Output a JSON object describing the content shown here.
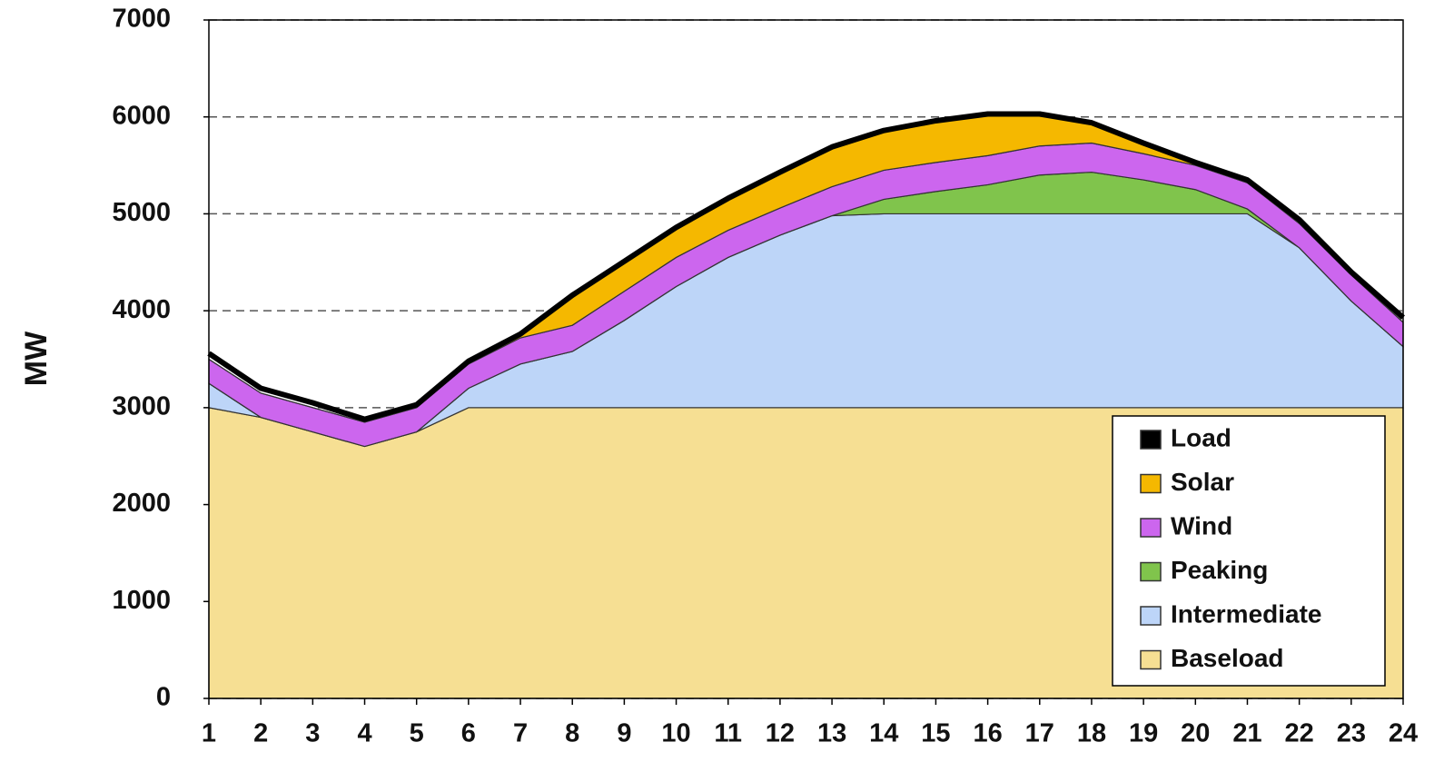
{
  "chart_data": {
    "type": "area",
    "stacked": true,
    "y_label": "MW",
    "x": [
      1,
      2,
      3,
      4,
      5,
      6,
      7,
      8,
      9,
      10,
      11,
      12,
      13,
      14,
      15,
      16,
      17,
      18,
      19,
      20,
      21,
      22,
      23,
      24
    ],
    "xlim": [
      1,
      24
    ],
    "xticks": [
      1,
      2,
      3,
      4,
      5,
      6,
      7,
      8,
      9,
      10,
      11,
      12,
      13,
      14,
      15,
      16,
      17,
      18,
      19,
      20,
      21,
      22,
      23,
      24
    ],
    "ylim": [
      0,
      7000
    ],
    "yticks": [
      0,
      1000,
      2000,
      3000,
      4000,
      5000,
      6000,
      7000
    ],
    "grid": true,
    "legend": "lower right",
    "series": [
      {
        "name": "Baseload",
        "color": "#f6df93",
        "values": [
          3000,
          2900,
          2750,
          2600,
          2750,
          3000,
          3000,
          3000,
          3000,
          3000,
          3000,
          3000,
          3000,
          3000,
          3000,
          3000,
          3000,
          3000,
          3000,
          3000,
          3000,
          3000,
          3000,
          3000
        ]
      },
      {
        "name": "Intermediate",
        "color": "#bdd5f8",
        "values": [
          250,
          0,
          0,
          0,
          0,
          200,
          450,
          580,
          900,
          1250,
          1550,
          1780,
          1980,
          2000,
          2000,
          2000,
          2000,
          2000,
          2000,
          2000,
          2000,
          1650,
          1100,
          630
        ]
      },
      {
        "name": "Peaking",
        "color": "#80c44c",
        "values": [
          0,
          0,
          0,
          0,
          0,
          0,
          0,
          0,
          0,
          0,
          0,
          0,
          0,
          150,
          230,
          300,
          400,
          430,
          350,
          250,
          50,
          0,
          0,
          0
        ]
      },
      {
        "name": "Wind",
        "color": "#cc66ee",
        "values": [
          250,
          250,
          250,
          250,
          250,
          250,
          270,
          270,
          300,
          300,
          280,
          280,
          300,
          300,
          300,
          300,
          300,
          300,
          270,
          250,
          270,
          250,
          270,
          250
        ]
      },
      {
        "name": "Solar",
        "color": "#f5b800",
        "values": [
          0,
          0,
          0,
          0,
          0,
          0,
          30,
          300,
          300,
          300,
          320,
          360,
          400,
          400,
          420,
          420,
          320,
          200,
          100,
          20,
          0,
          0,
          0,
          0
        ]
      },
      {
        "name": "Load",
        "color": "#000000",
        "type": "line",
        "values": [
          3560,
          3200,
          3050,
          2880,
          3030,
          3480,
          3760,
          4160,
          4510,
          4860,
          5160,
          5430,
          5690,
          5860,
          5960,
          6030,
          6030,
          5940,
          5730,
          5530,
          5350,
          4940,
          4400,
          3930
        ]
      }
    ]
  }
}
